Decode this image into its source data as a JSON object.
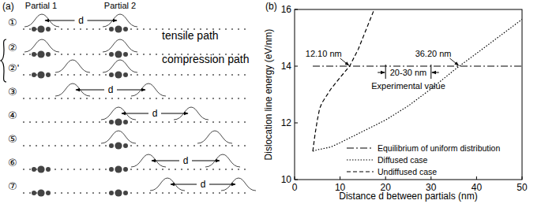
{
  "diagram": {
    "panel_label": "(a)",
    "partial_labels": [
      "Partial 1",
      "Partial 2"
    ],
    "distance_label": "d",
    "path_labels": [
      "tensile path",
      "compression path"
    ],
    "rows": [
      {
        "label": "①"
      },
      {
        "label": "②"
      },
      {
        "label": "②'"
      },
      {
        "label": "③"
      },
      {
        "label": "④"
      },
      {
        "label": "⑤"
      },
      {
        "label": "⑥"
      },
      {
        "label": "⑦"
      }
    ]
  },
  "chart_data": {
    "type": "line",
    "panel_label": "(b)",
    "x_label": "Distance d between partials (nm)",
    "y_label": "Dislocation line energy (eV/nm)",
    "xlim": [
      0,
      50
    ],
    "ylim": [
      10,
      16
    ],
    "xticks": [
      0,
      10,
      20,
      30,
      40,
      50
    ],
    "yticks": [
      10,
      12,
      14,
      16
    ],
    "legend": "lower right",
    "grid": false,
    "series": [
      {
        "name": "Equilibrium of uniform distribution",
        "color": "#000000",
        "line_style": "dashdot",
        "x": [
          4,
          50
        ],
        "values": [
          14,
          14
        ]
      },
      {
        "name": "Diffused case",
        "color": "#000000",
        "line_style": "dotted",
        "x": [
          4,
          5,
          8,
          10,
          15,
          20,
          25,
          30,
          35,
          36.2,
          40,
          45,
          50
        ],
        "values": [
          11.0,
          11.05,
          11.15,
          11.3,
          11.7,
          12.1,
          12.6,
          13.2,
          13.85,
          14.0,
          14.45,
          15.05,
          15.65
        ]
      },
      {
        "name": "Undiffused case",
        "color": "#000000",
        "line_style": "dashed",
        "x": [
          4,
          4.5,
          5,
          5.5,
          6,
          7,
          8,
          10,
          12.1,
          14,
          16,
          17.5
        ],
        "values": [
          11.0,
          11.6,
          12.1,
          12.5,
          12.7,
          12.95,
          13.2,
          13.6,
          14.0,
          14.6,
          15.4,
          16.0
        ]
      }
    ],
    "annotations": [
      {
        "text": "12.10 nm",
        "x": 12.1,
        "y": 14
      },
      {
        "text": "36.20 nm",
        "x": 36.2,
        "y": 14
      }
    ],
    "experimental": {
      "text": "20-30 nm",
      "caption": "Experimental value",
      "range": [
        20,
        30
      ],
      "y": 14
    }
  }
}
